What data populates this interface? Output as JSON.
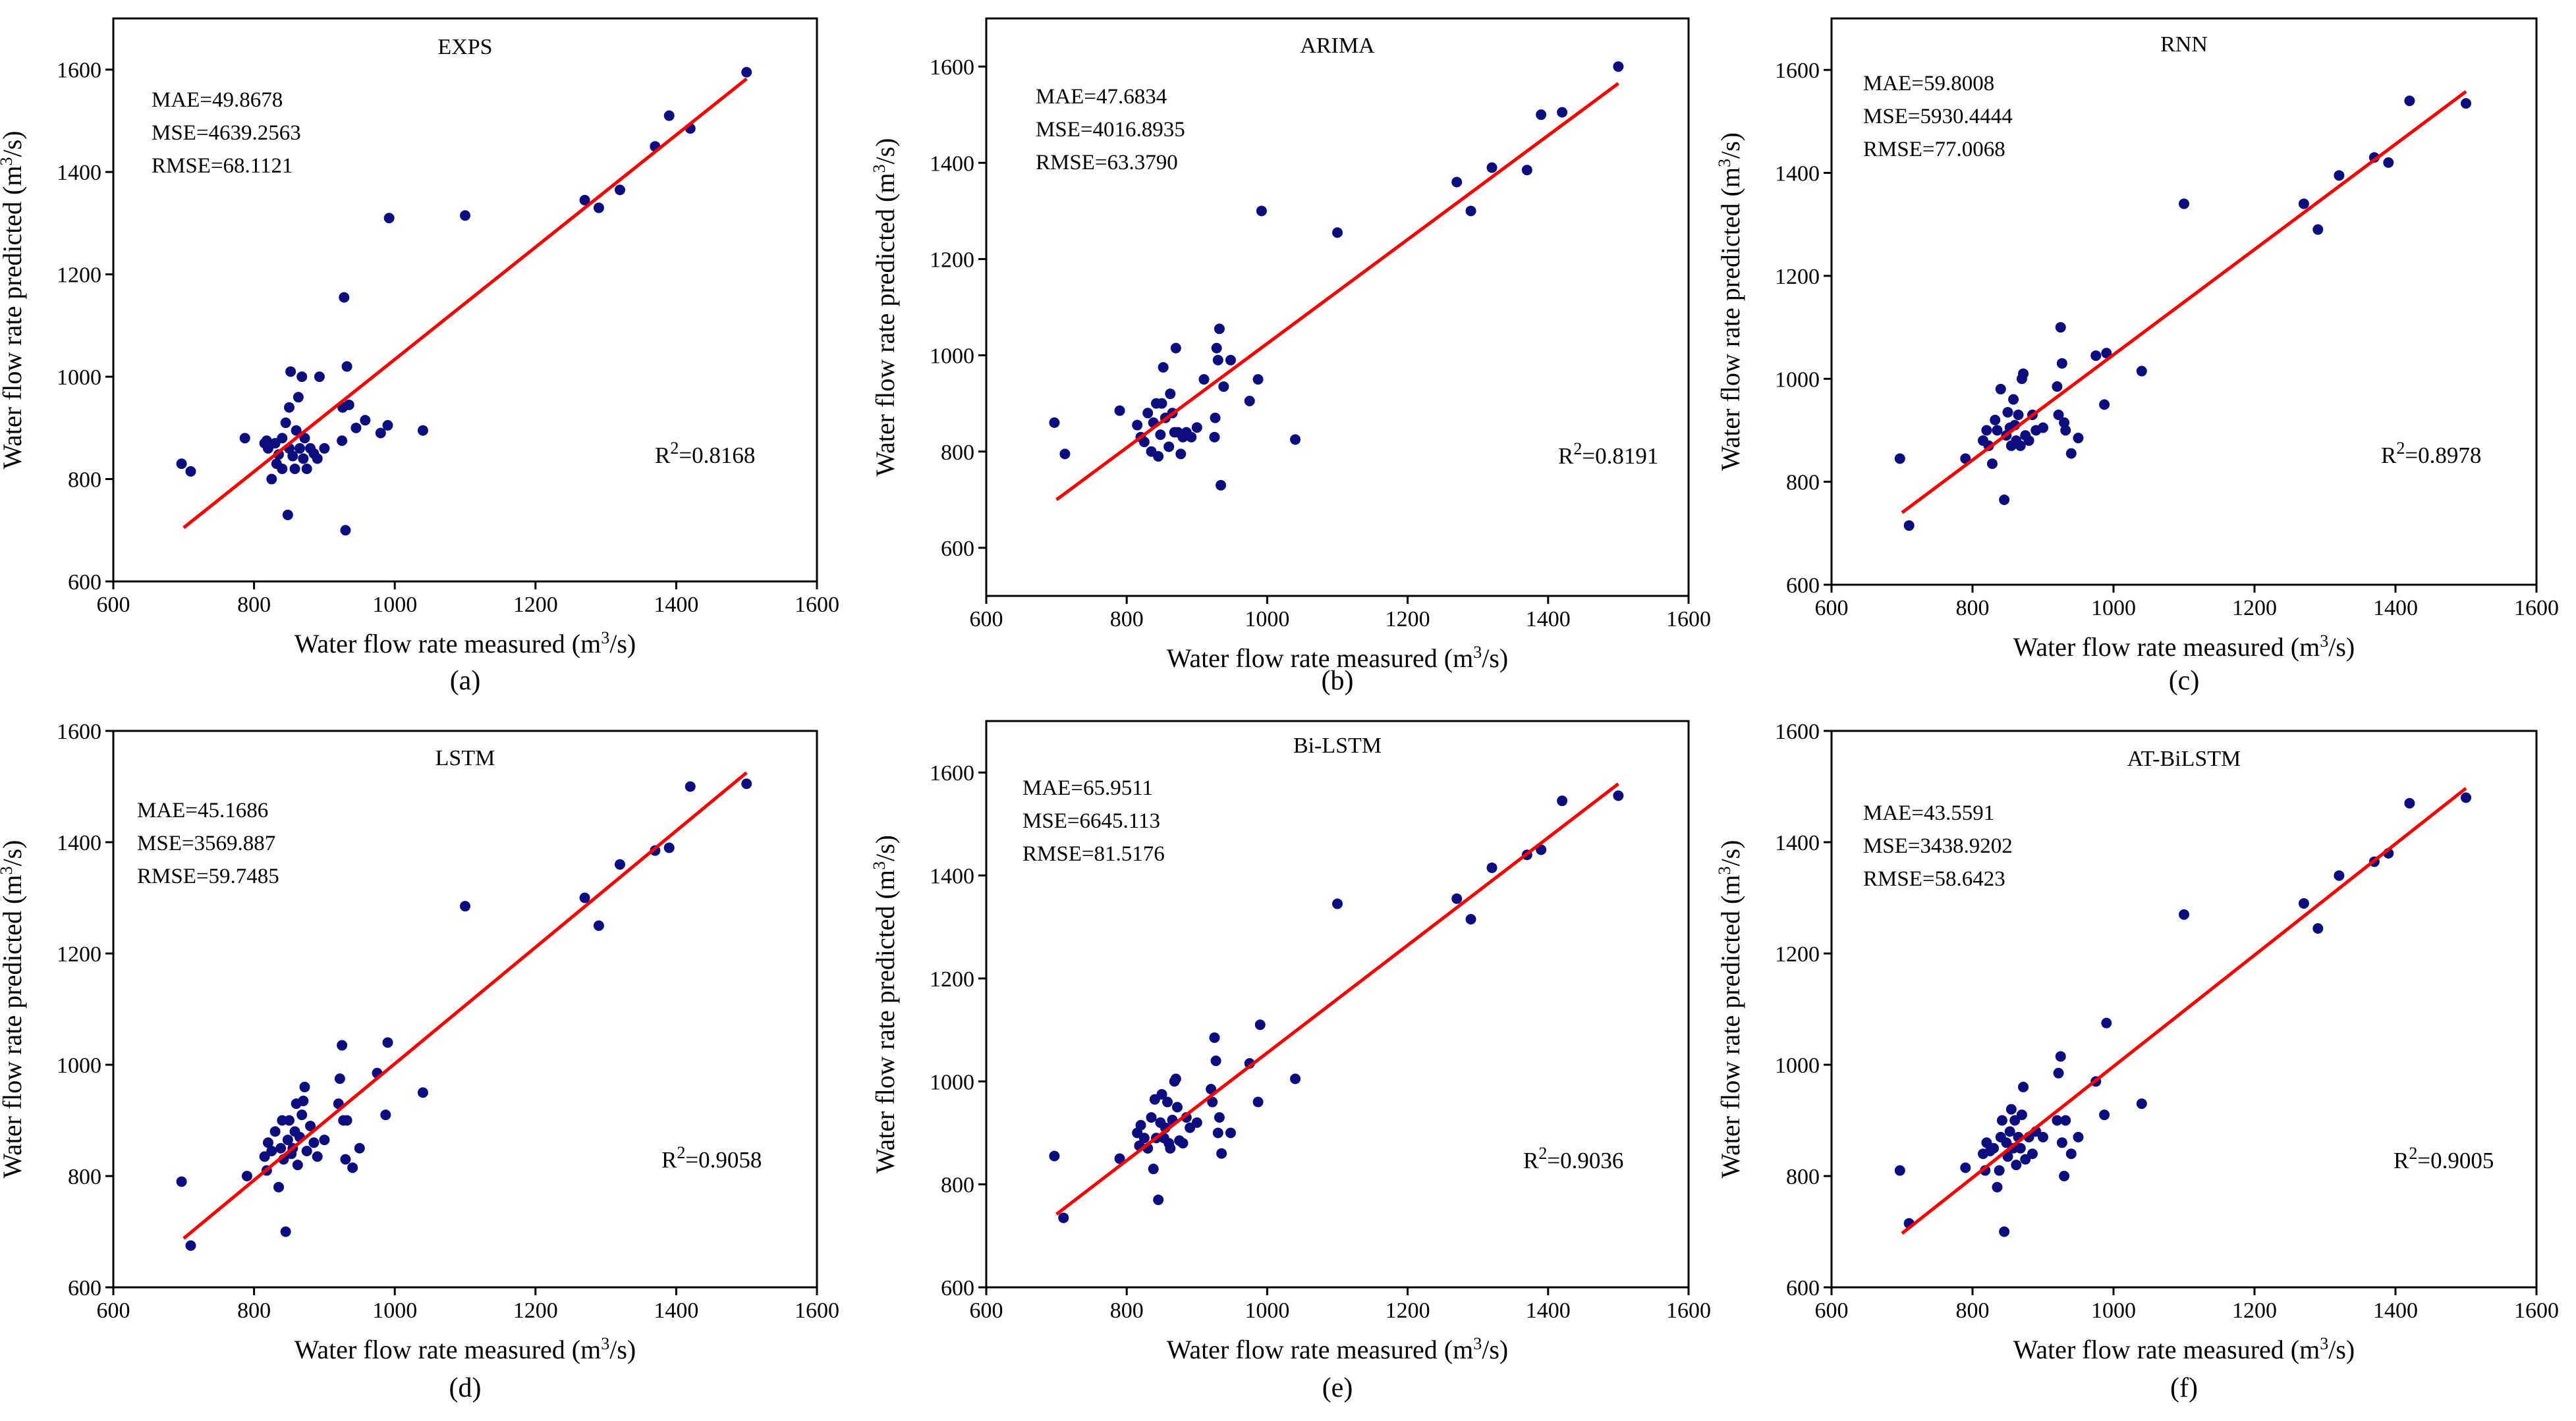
{
  "figure": {
    "x_label": "Water flow rate measured (m3/s)",
    "y_label": "Water flow rate predicted (m3/s)",
    "colors": {
      "points": "#0d0d80",
      "fit_line": "#ff0000",
      "axes": "#000000"
    }
  },
  "chart_data": [
    {
      "type": "scatter",
      "title": "EXPS",
      "caption": "(a)",
      "xlabel": "Water flow rate measured (m3/s)",
      "ylabel": "Water flow rate predicted (m3/s)",
      "xlim": [
        600,
        1600
      ],
      "ylim": [
        600,
        1700
      ],
      "xticks": [
        600,
        800,
        1000,
        1200,
        1400,
        1600
      ],
      "yticks": [
        600,
        800,
        1000,
        1200,
        1400,
        1600
      ],
      "metrics": [
        "MAE=49.8678",
        "MSE=4639.2563",
        "RMSE=68.1121"
      ],
      "r2_text": "R2=0.8168",
      "fit_line": [
        [
          700,
          705
        ],
        [
          1500,
          1582
        ]
      ],
      "points": [
        [
          697,
          830
        ],
        [
          710,
          815
        ],
        [
          787,
          880
        ],
        [
          815,
          870
        ],
        [
          818,
          875
        ],
        [
          820,
          860
        ],
        [
          825,
          800
        ],
        [
          830,
          870
        ],
        [
          832,
          830
        ],
        [
          835,
          848
        ],
        [
          840,
          820
        ],
        [
          840,
          880
        ],
        [
          845,
          910
        ],
        [
          848,
          730
        ],
        [
          850,
          860
        ],
        [
          850,
          940
        ],
        [
          852,
          1010
        ],
        [
          855,
          845
        ],
        [
          858,
          820
        ],
        [
          860,
          895
        ],
        [
          863,
          960
        ],
        [
          865,
          860
        ],
        [
          868,
          1000
        ],
        [
          870,
          840
        ],
        [
          872,
          880
        ],
        [
          875,
          820
        ],
        [
          880,
          860
        ],
        [
          885,
          850
        ],
        [
          890,
          840
        ],
        [
          893,
          1000
        ],
        [
          900,
          860
        ],
        [
          925,
          875
        ],
        [
          926,
          940
        ],
        [
          928,
          1155
        ],
        [
          930,
          700
        ],
        [
          932,
          1020
        ],
        [
          935,
          945
        ],
        [
          945,
          900
        ],
        [
          958,
          915
        ],
        [
          980,
          890
        ],
        [
          990,
          905
        ],
        [
          992,
          1310
        ],
        [
          1040,
          895
        ],
        [
          1100,
          1315
        ],
        [
          1270,
          1345
        ],
        [
          1290,
          1330
        ],
        [
          1320,
          1365
        ],
        [
          1370,
          1450
        ],
        [
          1390,
          1510
        ],
        [
          1420,
          1485
        ],
        [
          1500,
          1595
        ]
      ]
    },
    {
      "type": "scatter",
      "title": "ARIMA",
      "caption": "(b)",
      "xlabel": "Water flow rate measured (m3/s)",
      "ylabel": "Water flow rate predicted (m3/s)",
      "xlim": [
        600,
        1600
      ],
      "ylim": [
        500,
        1700
      ],
      "xticks": [
        600,
        800,
        1000,
        1200,
        1400,
        1600
      ],
      "yticks": [
        600,
        800,
        1000,
        1200,
        1400,
        1600
      ],
      "metrics": [
        "MAE=47.6834",
        "MSE=4016.8935",
        "RMSE=63.3790"
      ],
      "r2_text": "R2=0.8191",
      "fit_line": [
        [
          700,
          700
        ],
        [
          1500,
          1565
        ]
      ],
      "points": [
        [
          697,
          860
        ],
        [
          712,
          795
        ],
        [
          790,
          885
        ],
        [
          815,
          855
        ],
        [
          820,
          830
        ],
        [
          825,
          820
        ],
        [
          830,
          880
        ],
        [
          835,
          800
        ],
        [
          838,
          860
        ],
        [
          842,
          900
        ],
        [
          845,
          790
        ],
        [
          848,
          835
        ],
        [
          850,
          900
        ],
        [
          852,
          975
        ],
        [
          855,
          870
        ],
        [
          860,
          810
        ],
        [
          862,
          920
        ],
        [
          865,
          880
        ],
        [
          868,
          840
        ],
        [
          870,
          1015
        ],
        [
          873,
          840
        ],
        [
          877,
          795
        ],
        [
          880,
          830
        ],
        [
          885,
          840
        ],
        [
          892,
          830
        ],
        [
          900,
          850
        ],
        [
          910,
          950
        ],
        [
          925,
          830
        ],
        [
          926,
          870
        ],
        [
          928,
          1015
        ],
        [
          930,
          990
        ],
        [
          932,
          1055
        ],
        [
          934,
          730
        ],
        [
          938,
          935
        ],
        [
          948,
          990
        ],
        [
          975,
          905
        ],
        [
          987,
          950
        ],
        [
          992,
          1300
        ],
        [
          1040,
          825
        ],
        [
          1100,
          1255
        ],
        [
          1270,
          1360
        ],
        [
          1290,
          1300
        ],
        [
          1320,
          1390
        ],
        [
          1370,
          1385
        ],
        [
          1390,
          1500
        ],
        [
          1420,
          1505
        ],
        [
          1500,
          1600
        ]
      ]
    },
    {
      "type": "scatter",
      "title": "RNN",
      "caption": "(c)",
      "xlabel": "Water flow rate measured (m3/s)",
      "ylabel": "Water flow rate predicted (m3/s)",
      "xlim": [
        600,
        1600
      ],
      "ylim": [
        600,
        1700
      ],
      "xticks": [
        600,
        800,
        1000,
        1200,
        1400,
        1600
      ],
      "yticks": [
        600,
        800,
        1000,
        1200,
        1400,
        1600
      ],
      "metrics": [
        "MAE=59.8008",
        "MSE=5930.4444",
        "RMSE=77.0068"
      ],
      "r2_text": "R2=0.8978",
      "fit_line": [
        [
          700,
          740
        ],
        [
          1500,
          1558
        ]
      ],
      "points": [
        [
          697,
          845
        ],
        [
          710,
          715
        ],
        [
          790,
          845
        ],
        [
          815,
          880
        ],
        [
          820,
          900
        ],
        [
          823,
          870
        ],
        [
          828,
          835
        ],
        [
          832,
          920
        ],
        [
          835,
          900
        ],
        [
          840,
          980
        ],
        [
          845,
          765
        ],
        [
          848,
          890
        ],
        [
          850,
          935
        ],
        [
          853,
          905
        ],
        [
          855,
          870
        ],
        [
          858,
          960
        ],
        [
          860,
          910
        ],
        [
          862,
          880
        ],
        [
          865,
          930
        ],
        [
          868,
          870
        ],
        [
          870,
          1000
        ],
        [
          872,
          1010
        ],
        [
          875,
          890
        ],
        [
          880,
          880
        ],
        [
          885,
          930
        ],
        [
          890,
          900
        ],
        [
          900,
          905
        ],
        [
          920,
          985
        ],
        [
          922,
          930
        ],
        [
          925,
          1100
        ],
        [
          927,
          1030
        ],
        [
          930,
          915
        ],
        [
          932,
          900
        ],
        [
          940,
          855
        ],
        [
          950,
          885
        ],
        [
          975,
          1045
        ],
        [
          987,
          950
        ],
        [
          990,
          1050
        ],
        [
          1040,
          1015
        ],
        [
          1100,
          1340
        ],
        [
          1270,
          1340
        ],
        [
          1290,
          1290
        ],
        [
          1320,
          1395
        ],
        [
          1370,
          1430
        ],
        [
          1390,
          1420
        ],
        [
          1420,
          1540
        ],
        [
          1500,
          1535
        ]
      ]
    },
    {
      "type": "scatter",
      "title": "LSTM",
      "caption": "(d)",
      "xlabel": "Water flow rate measured (m3/s)",
      "ylabel": "Water flow rate predicted (m3/s)",
      "xlim": [
        600,
        1600
      ],
      "ylim": [
        600,
        1600
      ],
      "xticks": [
        600,
        800,
        1000,
        1200,
        1400,
        1600
      ],
      "yticks": [
        600,
        800,
        1000,
        1200,
        1400,
        1600
      ],
      "metrics": [
        "MAE=45.1686",
        "MSE=3569.887",
        "RMSE=59.7485"
      ],
      "r2_text": "R2=0.9058",
      "fit_line": [
        [
          700,
          688
        ],
        [
          1500,
          1525
        ]
      ],
      "points": [
        [
          697,
          790
        ],
        [
          710,
          675
        ],
        [
          790,
          800
        ],
        [
          815,
          835
        ],
        [
          818,
          810
        ],
        [
          820,
          860
        ],
        [
          825,
          845
        ],
        [
          830,
          880
        ],
        [
          835,
          780
        ],
        [
          838,
          850
        ],
        [
          840,
          900
        ],
        [
          842,
          830
        ],
        [
          845,
          700
        ],
        [
          848,
          865
        ],
        [
          850,
          900
        ],
        [
          853,
          840
        ],
        [
          855,
          850
        ],
        [
          858,
          880
        ],
        [
          860,
          930
        ],
        [
          862,
          820
        ],
        [
          865,
          870
        ],
        [
          868,
          910
        ],
        [
          870,
          935
        ],
        [
          872,
          960
        ],
        [
          875,
          845
        ],
        [
          880,
          890
        ],
        [
          885,
          860
        ],
        [
          890,
          835
        ],
        [
          900,
          865
        ],
        [
          920,
          930
        ],
        [
          922,
          975
        ],
        [
          925,
          1035
        ],
        [
          927,
          900
        ],
        [
          930,
          830
        ],
        [
          932,
          900
        ],
        [
          940,
          815
        ],
        [
          950,
          850
        ],
        [
          975,
          985
        ],
        [
          987,
          910
        ],
        [
          990,
          1040
        ],
        [
          1040,
          950
        ],
        [
          1100,
          1285
        ],
        [
          1270,
          1300
        ],
        [
          1290,
          1250
        ],
        [
          1320,
          1360
        ],
        [
          1370,
          1385
        ],
        [
          1390,
          1390
        ],
        [
          1420,
          1500
        ],
        [
          1500,
          1505
        ]
      ]
    },
    {
      "type": "scatter",
      "title": "Bi-LSTM",
      "caption": "(e)",
      "xlabel": "Water flow rate measured (m3/s)",
      "ylabel": "Water flow rate predicted (m3/s)",
      "xlim": [
        600,
        1600
      ],
      "ylim": [
        600,
        1700
      ],
      "xticks": [
        600,
        800,
        1000,
        1200,
        1400,
        1600
      ],
      "yticks": [
        600,
        800,
        1000,
        1200,
        1400,
        1600
      ],
      "metrics": [
        "MAE=65.9511",
        "MSE=6645.113",
        "RMSE=81.5176"
      ],
      "r2_text": "R2=0.9036",
      "fit_line": [
        [
          700,
          742
        ],
        [
          1500,
          1578
        ]
      ],
      "points": [
        [
          697,
          855
        ],
        [
          710,
          735
        ],
        [
          790,
          850
        ],
        [
          815,
          900
        ],
        [
          818,
          875
        ],
        [
          820,
          915
        ],
        [
          825,
          890
        ],
        [
          830,
          870
        ],
        [
          835,
          930
        ],
        [
          838,
          830
        ],
        [
          840,
          965
        ],
        [
          842,
          890
        ],
        [
          845,
          770
        ],
        [
          848,
          920
        ],
        [
          850,
          975
        ],
        [
          853,
          890
        ],
        [
          855,
          910
        ],
        [
          858,
          960
        ],
        [
          860,
          880
        ],
        [
          862,
          870
        ],
        [
          865,
          925
        ],
        [
          868,
          1000
        ],
        [
          870,
          1005
        ],
        [
          872,
          950
        ],
        [
          875,
          885
        ],
        [
          880,
          880
        ],
        [
          885,
          930
        ],
        [
          890,
          910
        ],
        [
          900,
          920
        ],
        [
          920,
          985
        ],
        [
          922,
          960
        ],
        [
          925,
          1085
        ],
        [
          927,
          1040
        ],
        [
          930,
          900
        ],
        [
          932,
          930
        ],
        [
          935,
          860
        ],
        [
          948,
          900
        ],
        [
          975,
          1035
        ],
        [
          987,
          960
        ],
        [
          990,
          1110
        ],
        [
          1040,
          1005
        ],
        [
          1100,
          1345
        ],
        [
          1270,
          1355
        ],
        [
          1290,
          1315
        ],
        [
          1320,
          1415
        ],
        [
          1370,
          1440
        ],
        [
          1390,
          1450
        ],
        [
          1420,
          1545
        ],
        [
          1500,
          1555
        ]
      ]
    },
    {
      "type": "scatter",
      "title": "AT-BiLSTM",
      "caption": "(f)",
      "xlabel": "Water flow rate measured (m3/s)",
      "ylabel": "Water flow rate predicted (m3/s)",
      "xlim": [
        600,
        1600
      ],
      "ylim": [
        600,
        1600
      ],
      "xticks": [
        600,
        800,
        1000,
        1200,
        1400,
        1600
      ],
      "yticks": [
        600,
        800,
        1000,
        1200,
        1400,
        1600
      ],
      "metrics": [
        "MAE=43.5591",
        "MSE=3438.9202",
        "RMSE=58.6423"
      ],
      "r2_text": "R2=0.9005",
      "fit_line": [
        [
          700,
          697
        ],
        [
          1500,
          1497
        ]
      ],
      "points": [
        [
          697,
          810
        ],
        [
          710,
          715
        ],
        [
          790,
          815
        ],
        [
          815,
          840
        ],
        [
          818,
          810
        ],
        [
          820,
          860
        ],
        [
          825,
          845
        ],
        [
          830,
          850
        ],
        [
          835,
          780
        ],
        [
          838,
          810
        ],
        [
          840,
          870
        ],
        [
          842,
          900
        ],
        [
          845,
          700
        ],
        [
          848,
          860
        ],
        [
          850,
          835
        ],
        [
          853,
          880
        ],
        [
          855,
          920
        ],
        [
          858,
          850
        ],
        [
          860,
          900
        ],
        [
          862,
          820
        ],
        [
          865,
          870
        ],
        [
          868,
          850
        ],
        [
          870,
          910
        ],
        [
          872,
          960
        ],
        [
          875,
          830
        ],
        [
          880,
          870
        ],
        [
          885,
          840
        ],
        [
          890,
          880
        ],
        [
          900,
          870
        ],
        [
          920,
          900
        ],
        [
          922,
          985
        ],
        [
          925,
          1015
        ],
        [
          927,
          860
        ],
        [
          930,
          800
        ],
        [
          932,
          900
        ],
        [
          940,
          840
        ],
        [
          950,
          870
        ],
        [
          975,
          970
        ],
        [
          987,
          910
        ],
        [
          990,
          1075
        ],
        [
          1040,
          930
        ],
        [
          1100,
          1270
        ],
        [
          1270,
          1290
        ],
        [
          1290,
          1245
        ],
        [
          1320,
          1340
        ],
        [
          1370,
          1365
        ],
        [
          1390,
          1380
        ],
        [
          1420,
          1470
        ],
        [
          1500,
          1480
        ]
      ]
    }
  ]
}
